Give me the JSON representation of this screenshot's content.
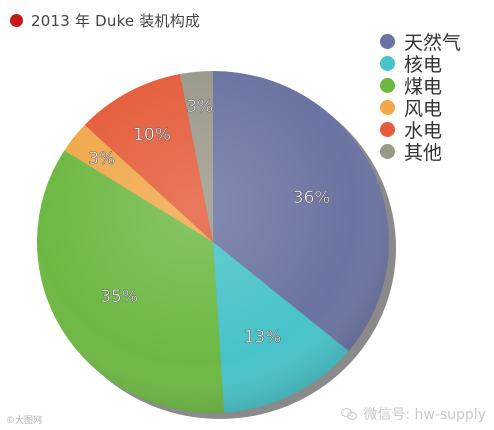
{
  "chart_data": {
    "type": "pie",
    "title": "2013 年 Duke 装机构成",
    "legend_position": "top-right",
    "slices": [
      {
        "name": "天然气",
        "value": 36,
        "label": "36%",
        "color": "#6a73a1"
      },
      {
        "name": "核电",
        "value": 13,
        "label": "13%",
        "color": "#47c3c9"
      },
      {
        "name": "煤电",
        "value": 35,
        "label": "35%",
        "color": "#6db843"
      },
      {
        "name": "风电",
        "value": 3,
        "label": "3%",
        "color": "#f0a84a"
      },
      {
        "name": "水电",
        "value": 10,
        "label": "10%",
        "color": "#e45c3a"
      },
      {
        "name": "其他",
        "value": 3,
        "label": "3%",
        "color": "#99998a"
      }
    ],
    "title_marker_color": "#c8161d"
  },
  "watermarks": {
    "left": "©大图网",
    "right": "微信号: hw-supply"
  }
}
